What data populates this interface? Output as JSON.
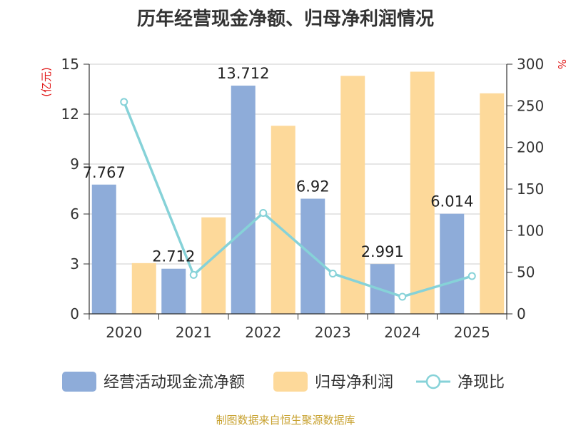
{
  "chart_data": {
    "type": "bar",
    "title": "历年经营现金净额、归母净利润情况",
    "categories": [
      "2020",
      "2021",
      "2022",
      "2023",
      "2024",
      "2025"
    ],
    "series": [
      {
        "name": "经营活动现金流净额",
        "type": "bar",
        "axis": "left",
        "color": "#8eacd9",
        "values": [
          7.767,
          2.712,
          13.712,
          6.92,
          2.991,
          6.014
        ]
      },
      {
        "name": "归母净利润",
        "type": "bar",
        "axis": "left",
        "color": "#fdd99a",
        "values": [
          3.05,
          5.8,
          11.3,
          14.3,
          14.55,
          13.25
        ]
      },
      {
        "name": "净现比",
        "type": "line",
        "axis": "right",
        "color": "#86d2d8",
        "values": [
          254.7,
          46.8,
          121.3,
          48.4,
          20.6,
          45.4
        ]
      }
    ],
    "data_labels": [
      "7.767",
      "2.712",
      "13.712",
      "6.92",
      "2.991",
      "6.014"
    ],
    "y_left": {
      "label": "(亿元)",
      "ylim": [
        0,
        15
      ],
      "ticks": [
        "0",
        "3",
        "6",
        "9",
        "12",
        "15"
      ]
    },
    "y_right": {
      "label": "%",
      "ylim": [
        0,
        300
      ],
      "ticks": [
        "0",
        "50",
        "100",
        "150",
        "200",
        "250",
        "300"
      ]
    },
    "legend": [
      "经营活动现金流净额",
      "归母净利润",
      "净现比"
    ],
    "legend_position": "bottom",
    "grid": true
  },
  "source": "制图数据来自恒生聚源数据库"
}
